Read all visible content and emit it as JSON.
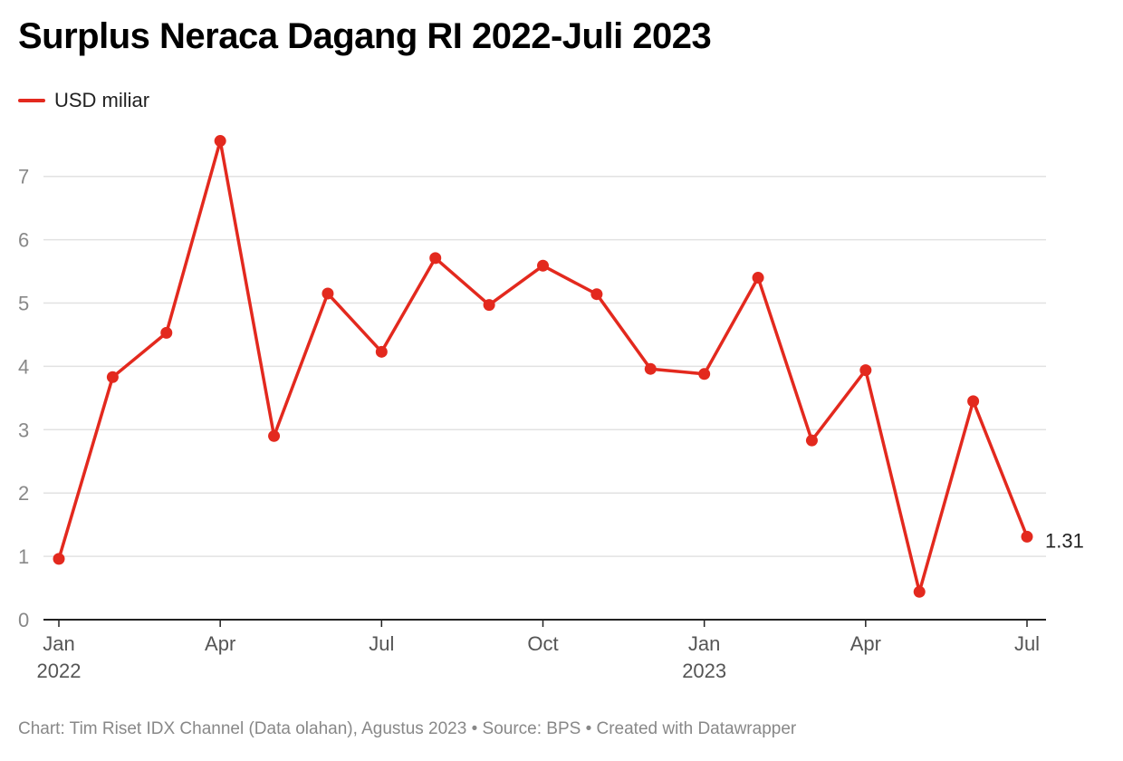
{
  "header": {
    "title": "Surplus Neraca Dagang RI 2022-Juli 2023"
  },
  "legend": {
    "label": "USD miliar",
    "color": "#e3291e"
  },
  "footer": {
    "text": "Chart: Tim Riset IDX Channel (Data olahan), Agustus 2023 • Source: BPS • Created with Datawrapper"
  },
  "chart_data": {
    "type": "line",
    "title": "Surplus Neraca Dagang RI 2022-Juli 2023",
    "xlabel": "",
    "ylabel": "",
    "ylim": [
      0,
      7.5
    ],
    "yticks": [
      0,
      1,
      2,
      3,
      4,
      5,
      6,
      7
    ],
    "grid": true,
    "legend_position": "top-left",
    "x": [
      "2022-01",
      "2022-02",
      "2022-03",
      "2022-04",
      "2022-05",
      "2022-06",
      "2022-07",
      "2022-08",
      "2022-09",
      "2022-10",
      "2022-11",
      "2022-12",
      "2023-01",
      "2023-02",
      "2023-03",
      "2023-04",
      "2023-05",
      "2023-06",
      "2023-07"
    ],
    "xtick_labels": [
      {
        "x": "2022-01",
        "label": "Jan",
        "sublabel": "2022"
      },
      {
        "x": "2022-04",
        "label": "Apr",
        "sublabel": ""
      },
      {
        "x": "2022-07",
        "label": "Jul",
        "sublabel": ""
      },
      {
        "x": "2022-10",
        "label": "Oct",
        "sublabel": ""
      },
      {
        "x": "2023-01",
        "label": "Jan",
        "sublabel": "2023"
      },
      {
        "x": "2023-04",
        "label": "Apr",
        "sublabel": ""
      },
      {
        "x": "2023-07",
        "label": "Jul",
        "sublabel": ""
      }
    ],
    "series": [
      {
        "name": "USD miliar",
        "color": "#e3291e",
        "values": [
          0.96,
          3.83,
          4.53,
          7.56,
          2.9,
          5.15,
          4.23,
          5.71,
          4.97,
          5.59,
          5.14,
          3.96,
          3.88,
          5.4,
          2.83,
          3.94,
          0.44,
          3.45,
          1.31
        ]
      }
    ],
    "annotations": [
      {
        "x": "2023-07",
        "text": "1.31"
      }
    ]
  }
}
